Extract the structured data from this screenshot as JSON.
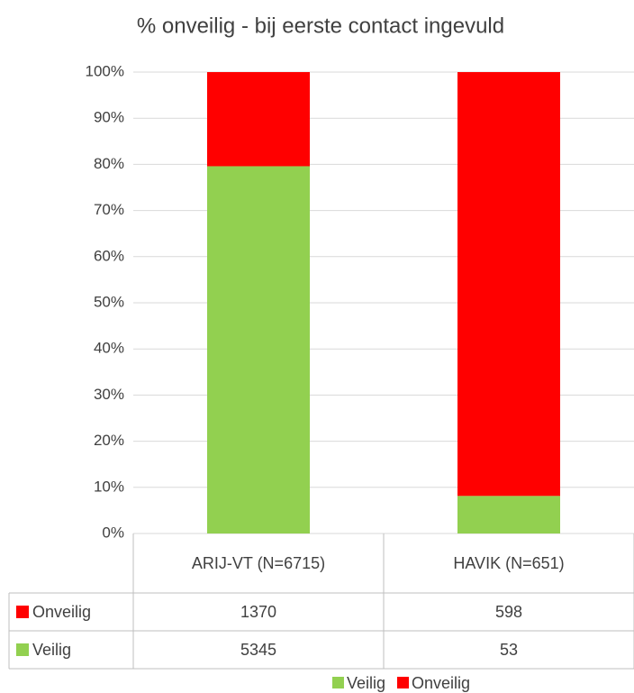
{
  "chart_data": {
    "type": "bar",
    "stacking": "percent",
    "title": "% onveilig - bij eerste contact ingevuld",
    "categories": [
      "ARIJ-VT (N=6715)",
      "HAVIK (N=651)"
    ],
    "series": [
      {
        "name": "Veilig",
        "color": "#92d050",
        "values": [
          5345,
          53
        ]
      },
      {
        "name": "Onveilig",
        "color": "#ff0000",
        "values": [
          1370,
          598
        ]
      }
    ],
    "ylim": [
      0,
      100
    ],
    "yticks": [
      {
        "value": 0,
        "label": "0%"
      },
      {
        "value": 10,
        "label": "10%"
      },
      {
        "value": 20,
        "label": "20%"
      },
      {
        "value": 30,
        "label": "30%"
      },
      {
        "value": 40,
        "label": "40%"
      },
      {
        "value": 50,
        "label": "50%"
      },
      {
        "value": 60,
        "label": "60%"
      },
      {
        "value": 70,
        "label": "70%"
      },
      {
        "value": 80,
        "label": "80%"
      },
      {
        "value": 90,
        "label": "90%"
      },
      {
        "value": 100,
        "label": "100%"
      }
    ],
    "grid": true,
    "data_table": true,
    "legend": "bottom"
  }
}
